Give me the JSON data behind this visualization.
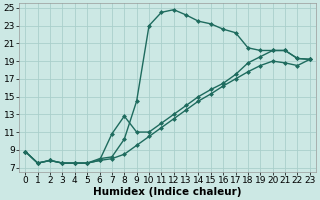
{
  "xlabel": "Humidex (Indice chaleur)",
  "bg_color": "#cce8e4",
  "grid_color": "#aacfcb",
  "line_color": "#1e6b5e",
  "xlim": [
    -0.5,
    23.5
  ],
  "ylim": [
    6.5,
    25.5
  ],
  "xticks": [
    0,
    1,
    2,
    3,
    4,
    5,
    6,
    7,
    8,
    9,
    10,
    11,
    12,
    13,
    14,
    15,
    16,
    17,
    18,
    19,
    20,
    21,
    22,
    23
  ],
  "yticks": [
    7,
    9,
    11,
    13,
    15,
    17,
    19,
    21,
    23,
    25
  ],
  "line1_x": [
    0,
    1,
    2,
    3,
    4,
    5,
    6,
    7,
    8,
    9,
    10,
    11,
    12,
    13,
    14,
    15,
    16,
    17,
    18,
    19,
    20,
    21,
    22,
    23
  ],
  "line1_y": [
    8.8,
    7.5,
    7.8,
    7.5,
    7.5,
    7.5,
    8.0,
    8.2,
    10.2,
    14.5,
    23.0,
    24.5,
    24.8,
    24.2,
    23.5,
    23.2,
    22.6,
    22.2,
    20.5,
    20.2,
    20.2,
    20.2,
    19.3,
    19.2
  ],
  "line2_x": [
    0,
    1,
    2,
    3,
    4,
    5,
    6,
    7,
    8,
    9,
    10,
    11,
    12,
    13,
    14,
    15,
    16,
    17,
    18,
    19,
    20,
    21,
    22,
    23
  ],
  "line2_y": [
    8.8,
    7.5,
    7.8,
    7.5,
    7.5,
    7.5,
    7.8,
    10.8,
    12.8,
    11.0,
    11.0,
    12.0,
    13.0,
    14.0,
    15.0,
    15.8,
    16.5,
    17.5,
    18.8,
    19.5,
    20.2,
    20.2,
    19.3,
    19.2
  ],
  "line3_x": [
    0,
    1,
    2,
    3,
    4,
    5,
    6,
    7,
    8,
    9,
    10,
    11,
    12,
    13,
    14,
    15,
    16,
    17,
    18,
    19,
    20,
    21,
    22,
    23
  ],
  "line3_y": [
    8.8,
    7.5,
    7.8,
    7.5,
    7.5,
    7.5,
    7.8,
    8.0,
    8.5,
    9.5,
    10.5,
    11.5,
    12.5,
    13.5,
    14.5,
    15.3,
    16.2,
    17.0,
    17.8,
    18.5,
    19.0,
    18.8,
    18.5,
    19.2
  ],
  "markersize": 2.5,
  "linewidth": 1.0,
  "xlabel_fontsize": 7.5,
  "tick_fontsize": 6.5
}
